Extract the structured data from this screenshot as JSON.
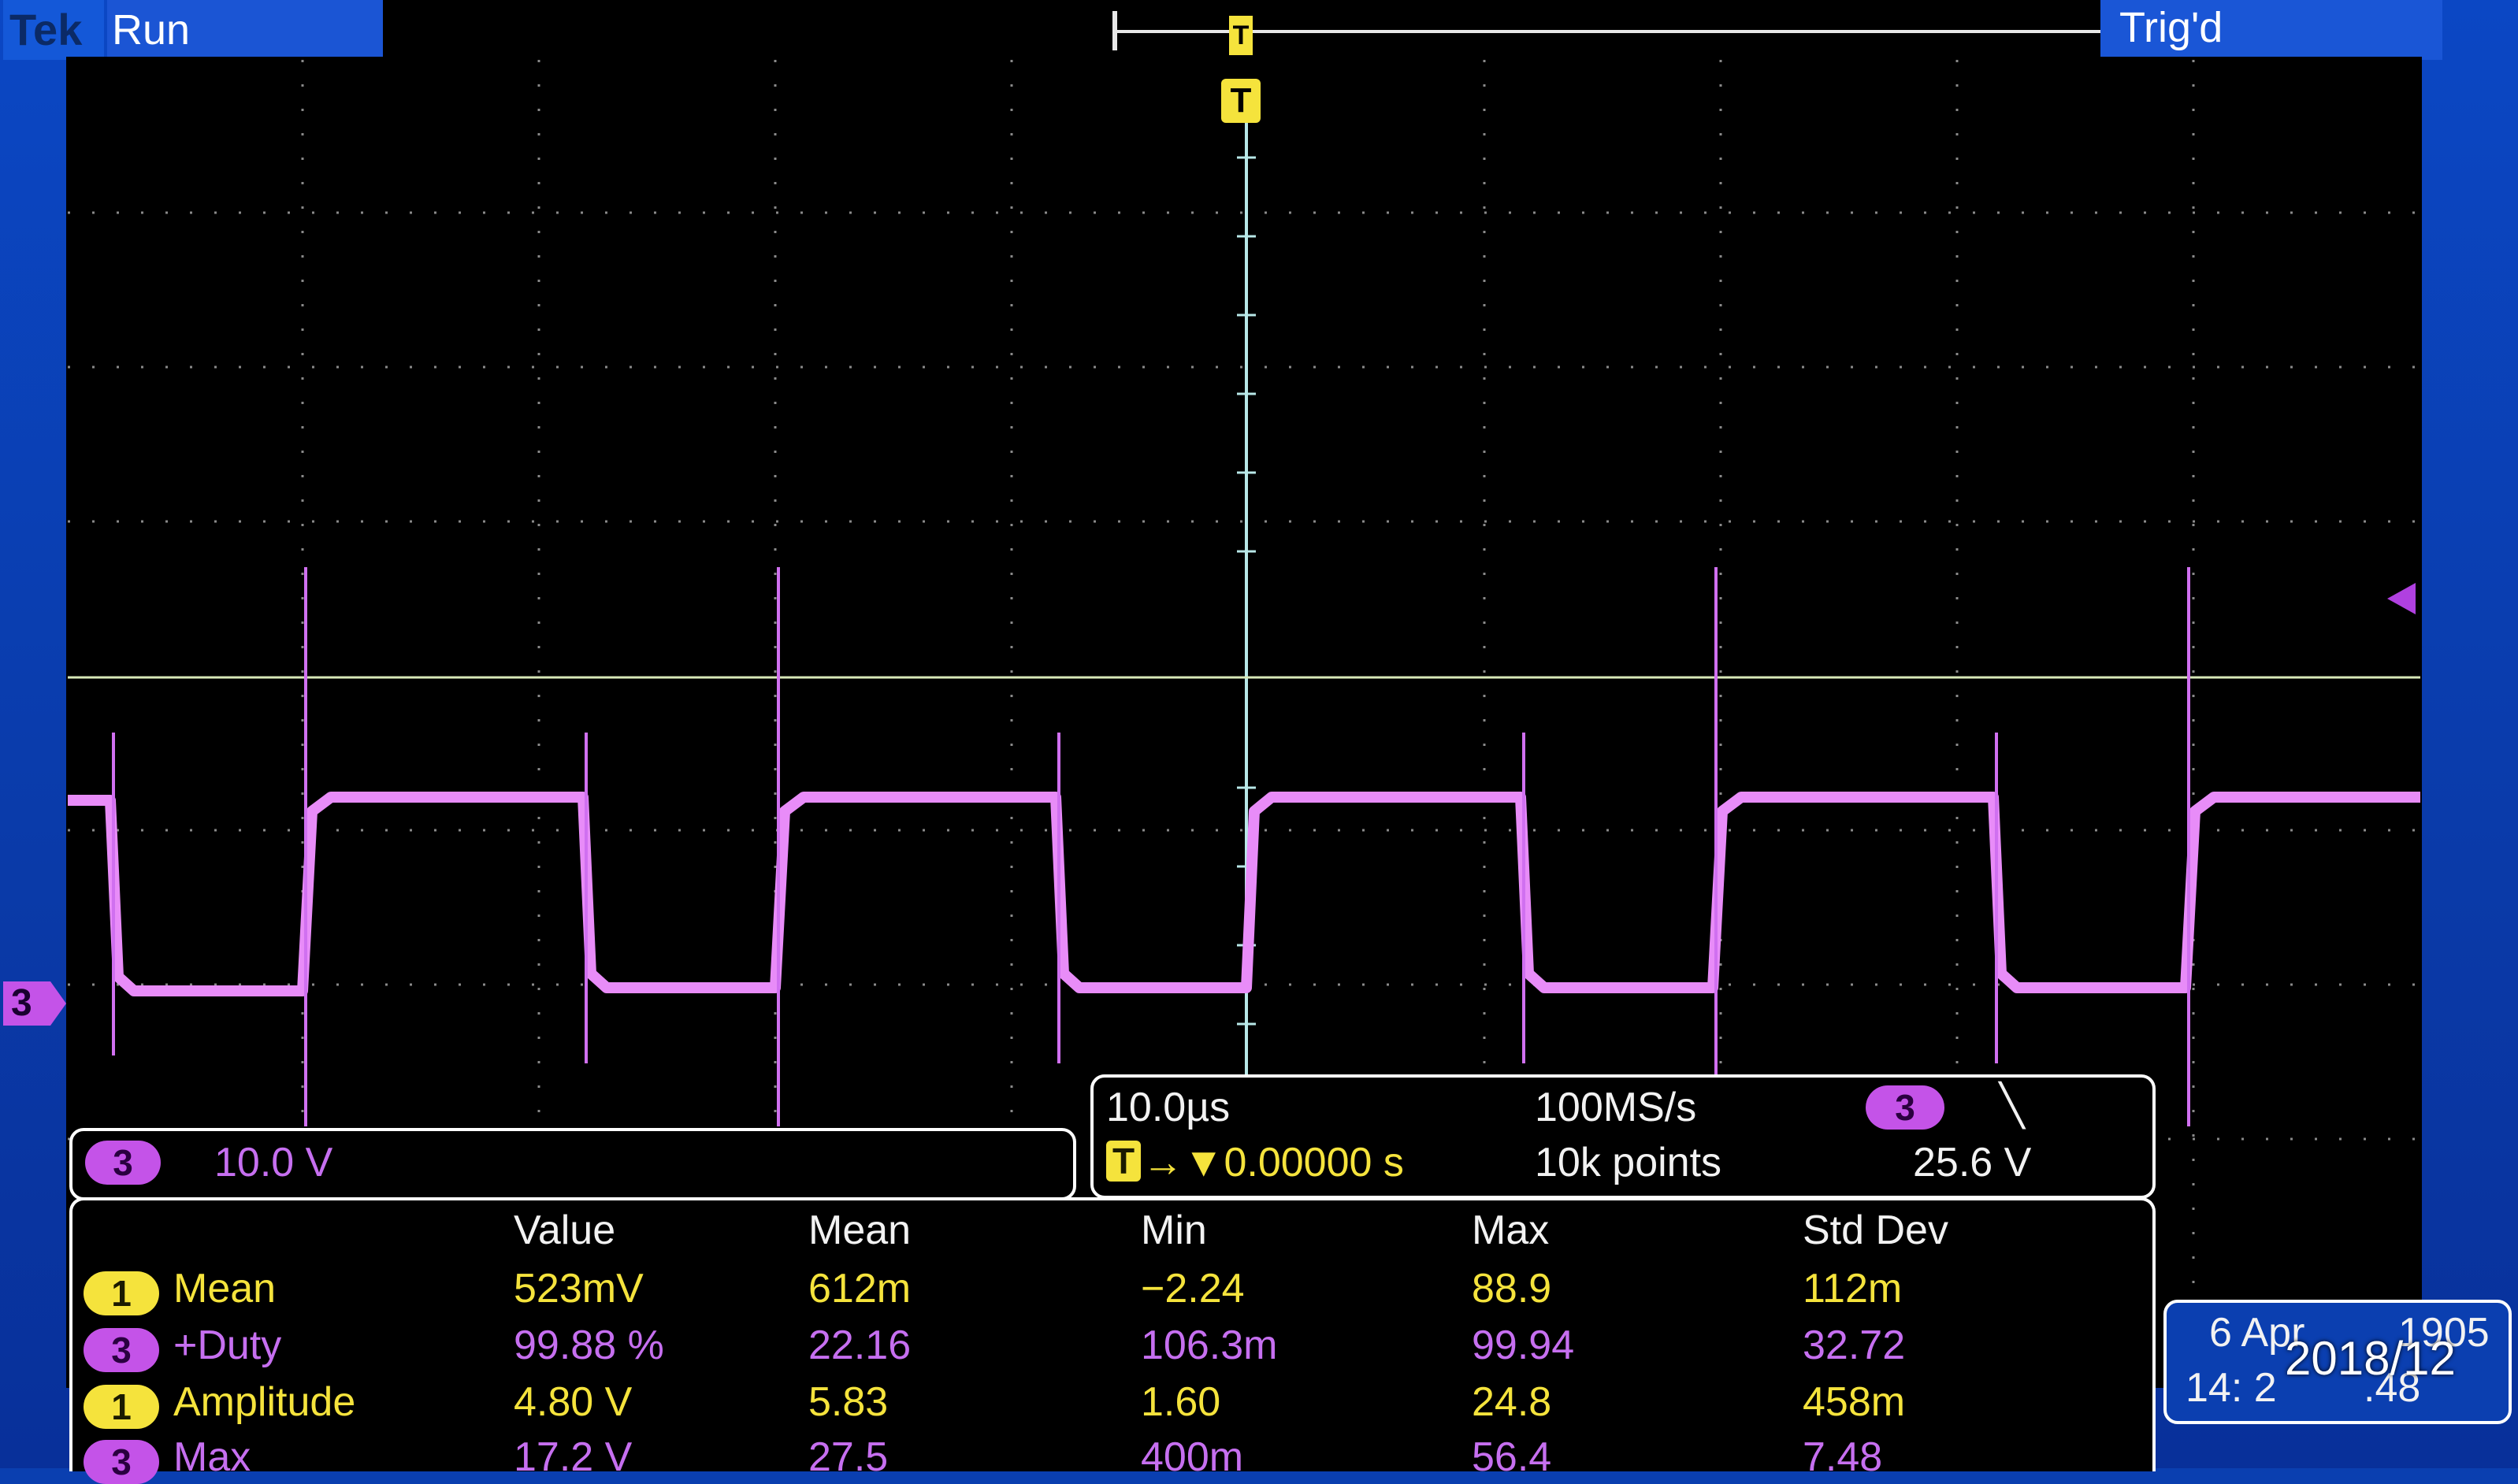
{
  "header": {
    "brand": "Tek",
    "acq_state": "Run",
    "trigger_status": "Trig'd"
  },
  "trigger_marker": "T",
  "channel_marker": "3",
  "channel_readout": {
    "channel": "3",
    "scale": "10.0 V"
  },
  "timebase": {
    "horizontal_scale": "10.0µs",
    "trigger_position": "→▼0.00000 s",
    "sample_rate": "100MS/s",
    "record_length": "10k points",
    "trigger_source": "3",
    "trigger_slope": "╲",
    "trigger_level": "25.6 V"
  },
  "measurements": {
    "headers": [
      "Value",
      "Mean",
      "Min",
      "Max",
      "Std Dev"
    ],
    "rows": [
      {
        "channel": "1",
        "name": "Mean",
        "value": "523mV",
        "mean": "612m",
        "min": "−2.24",
        "max": "88.9",
        "std": "112m",
        "color": "yellow"
      },
      {
        "channel": "3",
        "name": "+Duty",
        "value": "99.88 %",
        "mean": "22.16",
        "min": "106.3m",
        "max": "99.94",
        "std": "32.72",
        "color": "purple"
      },
      {
        "channel": "1",
        "name": "Amplitude",
        "value": "4.80 V",
        "mean": "5.83",
        "min": "1.60",
        "max": "24.8",
        "std": "458m",
        "color": "yellow"
      },
      {
        "channel": "3",
        "name": "Max",
        "value": "17.2 V",
        "mean": "27.5",
        "min": "400m",
        "max": "56.4",
        "std": "7.48",
        "color": "purple"
      }
    ]
  },
  "datetime": {
    "date": "6 Apr",
    "year_fragment": "1905",
    "time": "14: 2",
    "time_tail": ".48"
  },
  "photo_timestamp": "2018/12",
  "colors": {
    "ch1": "#f5e33c",
    "ch3": "#c453e8",
    "bezel": "#0a3fb0"
  }
}
